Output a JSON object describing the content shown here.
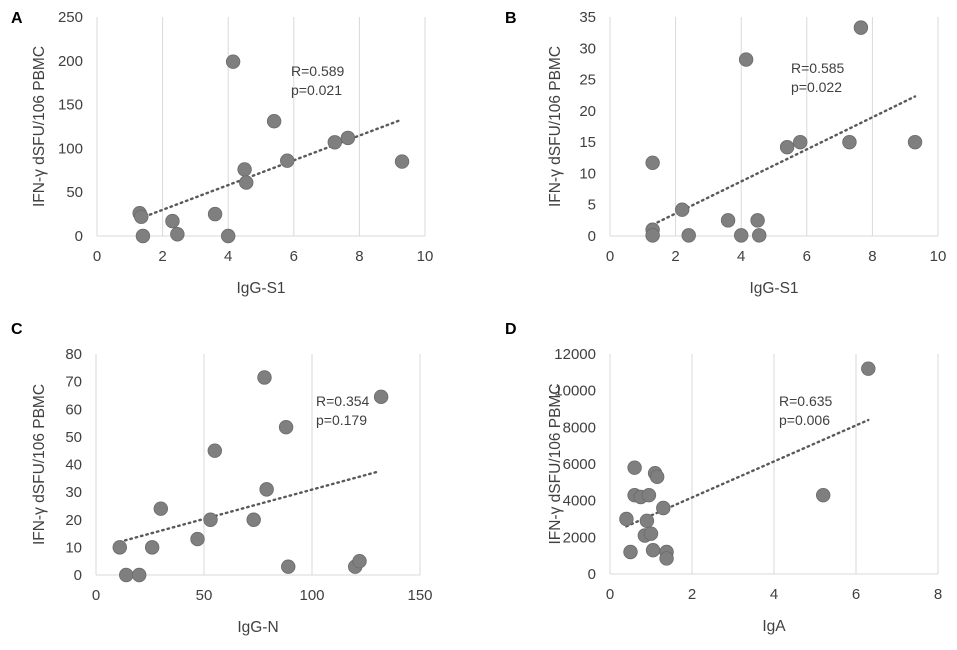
{
  "chart_data": [
    {
      "type": "scatter",
      "panel": "A",
      "xlabel": "IgG-S1",
      "ylabel": "IFN-γ dSFU/106 PBMC",
      "xlim": [
        0,
        10
      ],
      "ylim": [
        0,
        250
      ],
      "xticks": [
        0,
        2,
        4,
        6,
        8,
        10
      ],
      "yticks": [
        0,
        50,
        100,
        150,
        200,
        250
      ],
      "annotation": [
        "R=0.589",
        "p=0.021"
      ],
      "grid": "vertical",
      "points": [
        {
          "x": 1.3,
          "y": 26
        },
        {
          "x": 1.35,
          "y": 22
        },
        {
          "x": 1.4,
          "y": 0
        },
        {
          "x": 2.3,
          "y": 17
        },
        {
          "x": 2.45,
          "y": 2
        },
        {
          "x": 3.6,
          "y": 25
        },
        {
          "x": 4.0,
          "y": 0
        },
        {
          "x": 4.15,
          "y": 199
        },
        {
          "x": 4.5,
          "y": 76
        },
        {
          "x": 4.55,
          "y": 61
        },
        {
          "x": 5.4,
          "y": 131
        },
        {
          "x": 5.8,
          "y": 86
        },
        {
          "x": 7.25,
          "y": 107
        },
        {
          "x": 7.65,
          "y": 112
        },
        {
          "x": 9.3,
          "y": 85
        }
      ],
      "trend": {
        "x": [
          1.3,
          9.3
        ],
        "y": [
          20,
          133
        ]
      }
    },
    {
      "type": "scatter",
      "panel": "B",
      "xlabel": "IgG-S1",
      "ylabel": "IFN-γ dSFU/106 PBMC",
      "xlim": [
        0,
        10
      ],
      "ylim": [
        0,
        35
      ],
      "xticks": [
        0,
        2,
        4,
        6,
        8,
        10
      ],
      "yticks": [
        0,
        5,
        10,
        15,
        20,
        25,
        30,
        35
      ],
      "annotation": [
        "R=0.585",
        "p=0.022"
      ],
      "grid": "vertical",
      "points": [
        {
          "x": 1.3,
          "y": 11.7
        },
        {
          "x": 1.3,
          "y": 1.0
        },
        {
          "x": 1.3,
          "y": 0.1
        },
        {
          "x": 2.2,
          "y": 4.2
        },
        {
          "x": 2.4,
          "y": 0.1
        },
        {
          "x": 3.6,
          "y": 2.5
        },
        {
          "x": 4.0,
          "y": 0.1
        },
        {
          "x": 4.15,
          "y": 28.2
        },
        {
          "x": 4.5,
          "y": 2.5
        },
        {
          "x": 4.55,
          "y": 0.1
        },
        {
          "x": 5.4,
          "y": 14.2
        },
        {
          "x": 5.8,
          "y": 15.0
        },
        {
          "x": 7.3,
          "y": 15.0
        },
        {
          "x": 7.65,
          "y": 33.3
        },
        {
          "x": 9.3,
          "y": 15.0
        }
      ],
      "trend": {
        "x": [
          1.3,
          9.3
        ],
        "y": [
          1.8,
          22.3
        ]
      }
    },
    {
      "type": "scatter",
      "panel": "C",
      "xlabel": "IgG-N",
      "ylabel": "IFN-γ dSFU/106 PBMC",
      "xlim": [
        0,
        150
      ],
      "ylim": [
        0,
        80
      ],
      "xticks": [
        0,
        50,
        100,
        150
      ],
      "yticks": [
        0,
        10,
        20,
        30,
        40,
        50,
        60,
        70,
        80
      ],
      "annotation": [
        "R=0.354",
        "p=0.179"
      ],
      "grid": "vertical",
      "points": [
        {
          "x": 11,
          "y": 10
        },
        {
          "x": 14,
          "y": 0
        },
        {
          "x": 20,
          "y": 0
        },
        {
          "x": 26,
          "y": 10
        },
        {
          "x": 30,
          "y": 24
        },
        {
          "x": 47,
          "y": 13
        },
        {
          "x": 53,
          "y": 20
        },
        {
          "x": 55,
          "y": 45
        },
        {
          "x": 73,
          "y": 20
        },
        {
          "x": 78,
          "y": 71.5
        },
        {
          "x": 79,
          "y": 31
        },
        {
          "x": 88,
          "y": 53.5
        },
        {
          "x": 89,
          "y": 3
        },
        {
          "x": 120,
          "y": 3
        },
        {
          "x": 122,
          "y": 5
        },
        {
          "x": 132,
          "y": 64.5
        }
      ],
      "trend": {
        "x": [
          11,
          131
        ],
        "y": [
          12,
          37.5
        ]
      }
    },
    {
      "type": "scatter",
      "panel": "D",
      "xlabel": "IgA",
      "ylabel": "IFN-γ dSFU/106 PBMC",
      "xlim": [
        0,
        8
      ],
      "ylim": [
        0,
        12000
      ],
      "xticks": [
        0,
        2,
        4,
        6,
        8
      ],
      "yticks": [
        0,
        2000,
        4000,
        6000,
        8000,
        10000,
        12000
      ],
      "annotation": [
        "R=0.635",
        "p=0.006"
      ],
      "grid": "vertical",
      "points": [
        {
          "x": 0.4,
          "y": 3000
        },
        {
          "x": 0.5,
          "y": 1200
        },
        {
          "x": 0.6,
          "y": 5800
        },
        {
          "x": 0.6,
          "y": 4300
        },
        {
          "x": 0.75,
          "y": 4200
        },
        {
          "x": 0.85,
          "y": 2100
        },
        {
          "x": 0.9,
          "y": 2900
        },
        {
          "x": 0.95,
          "y": 4300
        },
        {
          "x": 1.0,
          "y": 2200
        },
        {
          "x": 1.05,
          "y": 1300
        },
        {
          "x": 1.1,
          "y": 5500
        },
        {
          "x": 1.15,
          "y": 5300
        },
        {
          "x": 1.3,
          "y": 3600
        },
        {
          "x": 1.38,
          "y": 1200
        },
        {
          "x": 1.38,
          "y": 850
        },
        {
          "x": 5.2,
          "y": 4300
        },
        {
          "x": 6.3,
          "y": 11200
        }
      ],
      "trend": {
        "x": [
          0.4,
          6.3
        ],
        "y": [
          2600,
          8400
        ]
      }
    }
  ]
}
